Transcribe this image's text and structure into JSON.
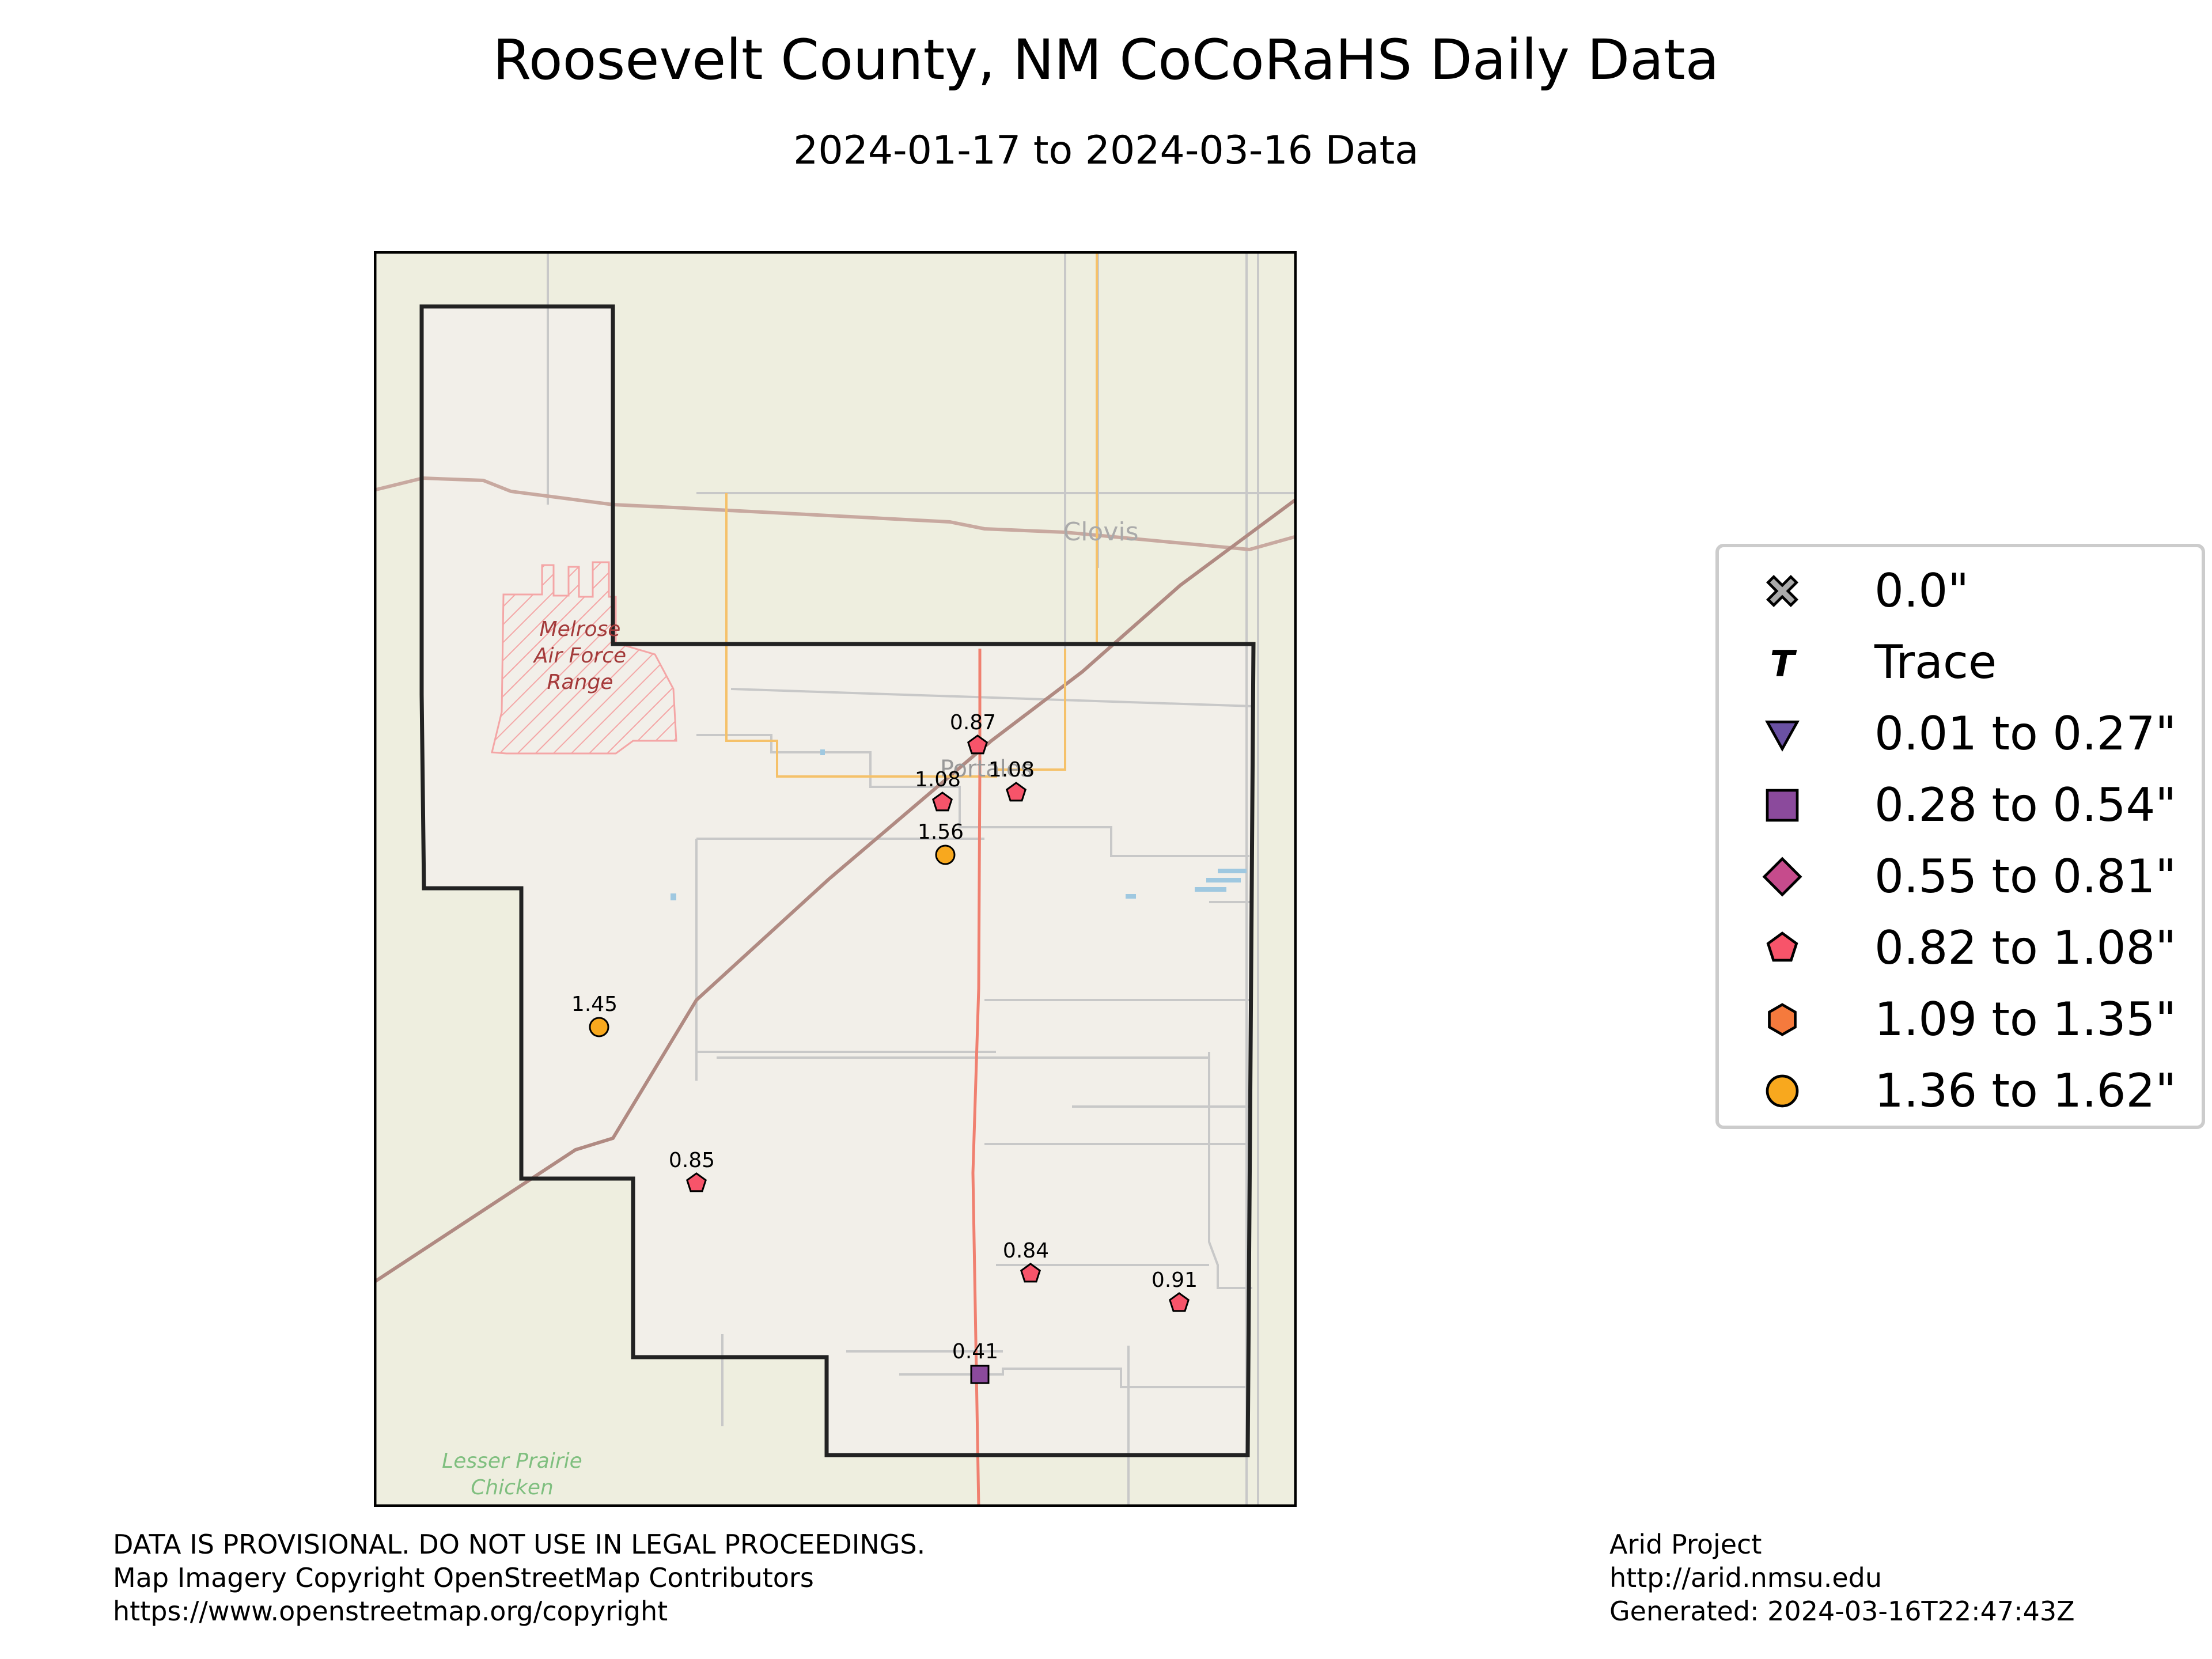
{
  "title": "Roosevelt County, NM CoCoRaHS Daily Data",
  "subtitle": "2024-01-17 to 2024-03-16 Data",
  "map_labels": {
    "clovis": "Clovis",
    "portales": "Portales",
    "melrose": [
      "Melrose",
      "Air Force",
      "Range"
    ],
    "lesser_prairie": [
      "Lesser Prairie",
      "Chicken"
    ]
  },
  "stations": [
    {
      "value": "0.87",
      "category": "0.82 to 1.08\""
    },
    {
      "value": "1.08",
      "category": "0.82 to 1.08\""
    },
    {
      "value": "1.08",
      "category": "0.82 to 1.08\""
    },
    {
      "value": "1.56",
      "category": "1.36 to 1.62\""
    },
    {
      "value": "1.45",
      "category": "1.36 to 1.62\""
    },
    {
      "value": "0.85",
      "category": "0.82 to 1.08\""
    },
    {
      "value": "0.84",
      "category": "0.82 to 1.08\""
    },
    {
      "value": "0.91",
      "category": "0.82 to 1.08\""
    },
    {
      "value": "0.41",
      "category": "0.28 to 0.54\""
    }
  ],
  "legend": [
    {
      "label": "0.0\"",
      "symbol": "x-mark",
      "color": "#aaaaaa"
    },
    {
      "label": "Trace",
      "symbol": "T",
      "color": "#000000"
    },
    {
      "label": "0.01 to 0.27\"",
      "symbol": "triangle-down",
      "color": "#6a51a3"
    },
    {
      "label": "0.28 to 0.54\"",
      "symbol": "square",
      "color": "#8b4a9c"
    },
    {
      "label": "0.55 to 0.81\"",
      "symbol": "diamond",
      "color": "#c64b8c"
    },
    {
      "label": "0.82 to 1.08\"",
      "symbol": "pentagon",
      "color": "#f7546a"
    },
    {
      "label": "1.09 to 1.35\"",
      "symbol": "hexagon",
      "color": "#f57a3d"
    },
    {
      "label": "1.36 to 1.62\"",
      "symbol": "circle",
      "color": "#f8a81e"
    }
  ],
  "footer_left": [
    "DATA IS PROVISIONAL. DO NOT USE IN LEGAL PROCEEDINGS.",
    "Map Imagery Copyright OpenStreetMap Contributors",
    "https://www.openstreetmap.org/copyright"
  ],
  "footer_right": [
    "Arid Project",
    "http://arid.nmsu.edu",
    "Generated: 2024-03-16T22:47:43Z"
  ]
}
